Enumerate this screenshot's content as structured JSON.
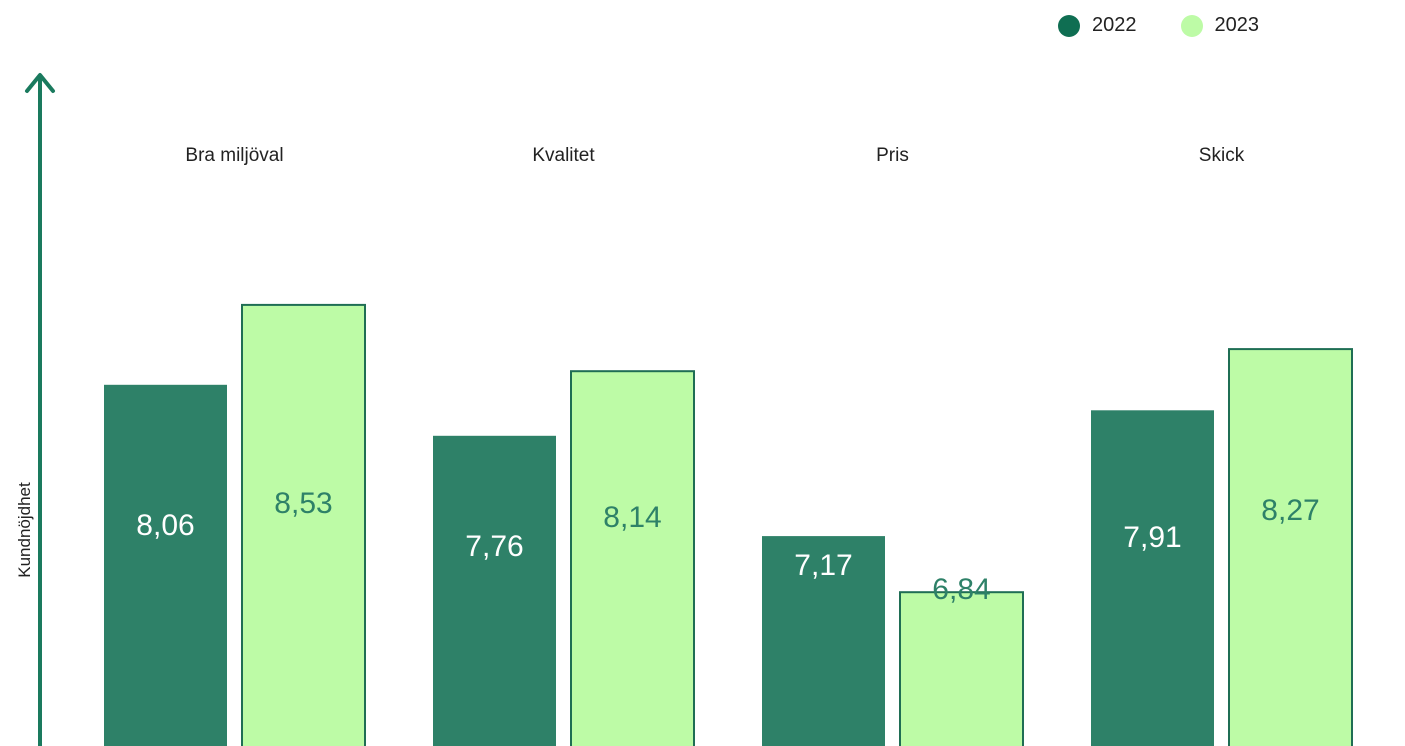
{
  "chart_data": {
    "type": "bar",
    "categories": [
      "Bra miljöval",
      "Kvalitet",
      "Pris",
      "Skick"
    ],
    "series": [
      {
        "name": "2022",
        "color": "#2e8168",
        "values": [
          8.06,
          7.76,
          7.17,
          7.91
        ],
        "labels": [
          "8,06",
          "7,76",
          "7,17",
          "7,91"
        ]
      },
      {
        "name": "2023",
        "color": "#bdfba6",
        "values": [
          8.53,
          8.14,
          6.84,
          8.27
        ],
        "labels": [
          "8,53",
          "8,14",
          "6,84",
          "8,27"
        ]
      }
    ],
    "ylabel": "Kundnöjdhet",
    "xlabel": "",
    "legend_position": "top-right",
    "grid": false,
    "colors": {
      "axis": "#1a7a5e",
      "dark": "#2e8168",
      "light": "#bdfba6",
      "light_border": "#1f6e54",
      "label_on_light": "#2e8168",
      "label_on_dark": "#ffffff"
    }
  }
}
